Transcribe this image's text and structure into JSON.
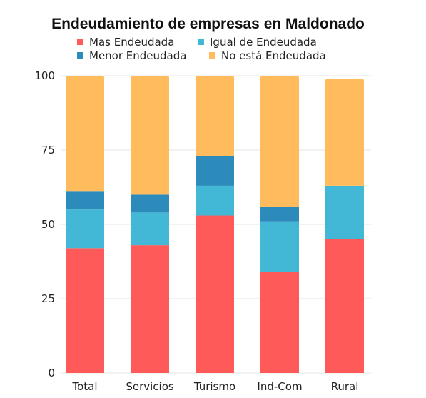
{
  "chart_data": {
    "type": "bar",
    "stacked": true,
    "title": "Endeudamiento de empresas en Maldonado",
    "xlabel": "",
    "ylabel": "",
    "ylim": [
      0,
      100
    ],
    "yticks": [
      0,
      25,
      50,
      75,
      100
    ],
    "grid": true,
    "legend_position": "top",
    "categories": [
      "Total",
      "Servicios",
      "Turismo",
      "Ind-Com",
      "Rural"
    ],
    "series": [
      {
        "name": "Mas Endeudada",
        "color": "#ff5a5a",
        "values": [
          42,
          43,
          53,
          34,
          45
        ]
      },
      {
        "name": "Igual de Endeudada",
        "color": "#42b8d6",
        "values": [
          13,
          11,
          10,
          17,
          18
        ]
      },
      {
        "name": "Menor Endeudada",
        "color": "#2c8bbb",
        "values": [
          6,
          6,
          10,
          5,
          0
        ]
      },
      {
        "name": "No está Endeudada",
        "color": "#ffbb5c",
        "values": [
          39,
          40,
          27,
          44,
          36
        ]
      }
    ]
  }
}
